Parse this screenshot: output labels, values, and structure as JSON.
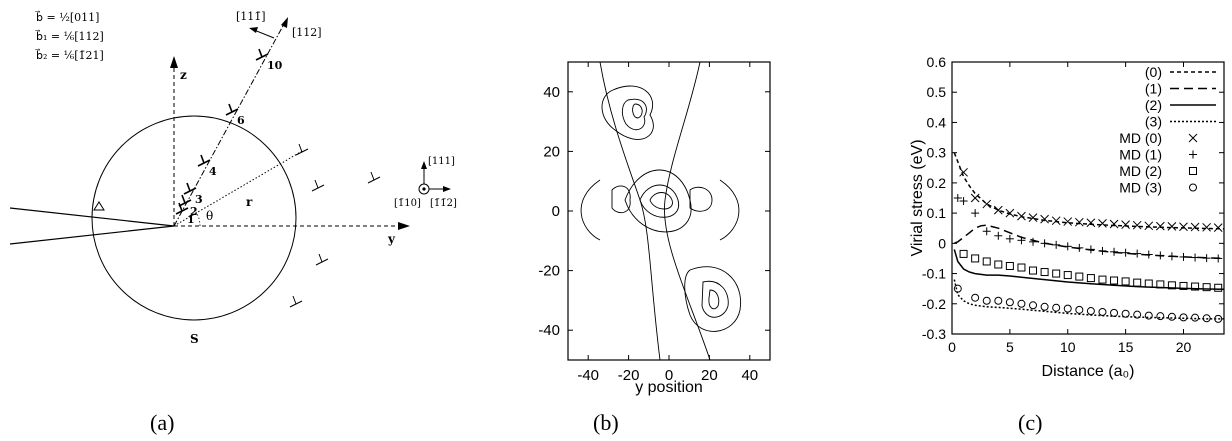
{
  "panel_a": {
    "burgers_b": "b⃗ = ½[011]",
    "burgers_b1": "b⃗₁ = ⅙[112]",
    "burgers_b2": "b⃗₂ = ⅙[1̄21]",
    "axis_z": "z",
    "axis_y": "y",
    "label_r": "r",
    "label_theta": "θ",
    "label_S": "S",
    "dir_11_1bar": "[111̄]",
    "dir_112": "[112]",
    "triad_111": "[111]",
    "triad_1bar10": "[1̄10]",
    "triad_1bar1bar2": "[1̄1̄2]",
    "dislocation_numbers": [
      "1",
      "2",
      "3",
      "4",
      "6",
      "10"
    ],
    "caption": "(a)"
  },
  "panel_b": {
    "xlabel": "y position",
    "x_ticks": [
      "-40",
      "-20",
      "0",
      "20",
      "40"
    ],
    "y_ticks": [
      "40",
      "20",
      "0",
      "-20",
      "-40"
    ],
    "caption": "(b)"
  },
  "panel_c": {
    "caption": "(c)"
  },
  "chart_data": {
    "type": "line",
    "xlabel": "Distance (a₀)",
    "ylabel": "Virial stress (eV)",
    "xlim": [
      0,
      23.5
    ],
    "ylim": [
      -0.3,
      0.6
    ],
    "x_ticks": [
      "0",
      "5",
      "10",
      "15",
      "20"
    ],
    "y_ticks": [
      "0.6",
      "0.5",
      "0.4",
      "0.3",
      "0.2",
      "0.1",
      "0",
      "-0.1",
      "-0.2",
      "-0.3"
    ],
    "legend_placement": "top-right",
    "series": [
      {
        "name": "(0)",
        "style": "dotted-dash",
        "x": [
          0.2,
          0.5,
          1,
          1.5,
          2,
          3,
          4,
          5,
          6,
          8,
          10,
          12,
          14,
          16,
          18,
          20,
          22,
          23.5
        ],
        "values": [
          0.3,
          0.27,
          0.22,
          0.19,
          0.165,
          0.13,
          0.11,
          0.097,
          0.088,
          0.076,
          0.068,
          0.063,
          0.059,
          0.056,
          0.053,
          0.051,
          0.049,
          0.048
        ]
      },
      {
        "name": "(1)",
        "style": "dashed",
        "x": [
          0.2,
          0.5,
          1,
          1.5,
          2,
          2.5,
          3,
          4,
          5,
          6,
          8,
          10,
          12,
          14,
          16,
          18,
          20,
          22,
          23.5
        ],
        "values": [
          0.0,
          0.005,
          0.02,
          0.035,
          0.05,
          0.058,
          0.06,
          0.05,
          0.035,
          0.02,
          0.0,
          -0.012,
          -0.022,
          -0.03,
          -0.036,
          -0.041,
          -0.045,
          -0.048,
          -0.05
        ]
      },
      {
        "name": "(2)",
        "style": "solid",
        "x": [
          0.2,
          0.5,
          1,
          1.5,
          2,
          3,
          4,
          5,
          6,
          8,
          10,
          12,
          14,
          16,
          18,
          20,
          22,
          23.5
        ],
        "values": [
          -0.02,
          -0.06,
          -0.085,
          -0.095,
          -0.1,
          -0.105,
          -0.105,
          -0.108,
          -0.112,
          -0.12,
          -0.128,
          -0.134,
          -0.139,
          -0.143,
          -0.146,
          -0.149,
          -0.151,
          -0.152
        ]
      },
      {
        "name": "(3)",
        "style": "dotted",
        "x": [
          0.2,
          0.5,
          1,
          1.5,
          2,
          3,
          4,
          5,
          6,
          8,
          10,
          12,
          14,
          16,
          18,
          20,
          22,
          23.5
        ],
        "values": [
          -0.12,
          -0.17,
          -0.19,
          -0.2,
          -0.205,
          -0.21,
          -0.212,
          -0.215,
          -0.218,
          -0.225,
          -0.232,
          -0.237,
          -0.241,
          -0.244,
          -0.246,
          -0.248,
          -0.25,
          -0.25
        ]
      },
      {
        "name": "MD (0)",
        "marker": "x",
        "x": [
          1,
          2,
          3,
          4,
          5,
          6,
          7,
          8,
          9,
          10,
          11,
          12,
          13,
          14,
          15,
          16,
          17,
          18,
          19,
          20,
          21,
          22,
          23
        ],
        "values": [
          0.235,
          0.15,
          0.13,
          0.11,
          0.1,
          0.09,
          0.085,
          0.08,
          0.075,
          0.072,
          0.07,
          0.068,
          0.066,
          0.064,
          0.062,
          0.06,
          0.058,
          0.057,
          0.056,
          0.055,
          0.054,
          0.053,
          0.052
        ]
      },
      {
        "name": "MD (1)",
        "marker": "+",
        "x": [
          0.5,
          1,
          2,
          3,
          4,
          5,
          6,
          7,
          8,
          9,
          10,
          11,
          12,
          13,
          14,
          15,
          16,
          17,
          18,
          19,
          20,
          21,
          22,
          23
        ],
        "values": [
          0.15,
          0.14,
          0.1,
          0.04,
          0.025,
          0.015,
          0.01,
          0.005,
          0.0,
          -0.005,
          -0.01,
          -0.015,
          -0.02,
          -0.025,
          -0.028,
          -0.031,
          -0.034,
          -0.037,
          -0.04,
          -0.043,
          -0.045,
          -0.047,
          -0.049,
          -0.05
        ]
      },
      {
        "name": "MD (2)",
        "marker": "square",
        "x": [
          1,
          2,
          3,
          4,
          5,
          6,
          7,
          8,
          9,
          10,
          11,
          12,
          13,
          14,
          15,
          16,
          17,
          18,
          19,
          20,
          21,
          22,
          23
        ],
        "values": [
          -0.035,
          -0.05,
          -0.06,
          -0.07,
          -0.075,
          -0.08,
          -0.09,
          -0.095,
          -0.1,
          -0.105,
          -0.11,
          -0.115,
          -0.12,
          -0.123,
          -0.126,
          -0.13,
          -0.133,
          -0.136,
          -0.139,
          -0.141,
          -0.143,
          -0.145,
          -0.147
        ]
      },
      {
        "name": "MD (3)",
        "marker": "circle",
        "x": [
          0.5,
          2,
          3,
          4,
          5,
          6,
          7,
          8,
          9,
          10,
          11,
          12,
          13,
          14,
          15,
          16,
          17,
          18,
          19,
          20,
          21,
          22,
          23
        ],
        "values": [
          -0.15,
          -0.18,
          -0.19,
          -0.19,
          -0.195,
          -0.2,
          -0.205,
          -0.21,
          -0.213,
          -0.216,
          -0.22,
          -0.224,
          -0.227,
          -0.23,
          -0.233,
          -0.236,
          -0.239,
          -0.241,
          -0.243,
          -0.245,
          -0.246,
          -0.248,
          -0.25
        ]
      }
    ]
  }
}
